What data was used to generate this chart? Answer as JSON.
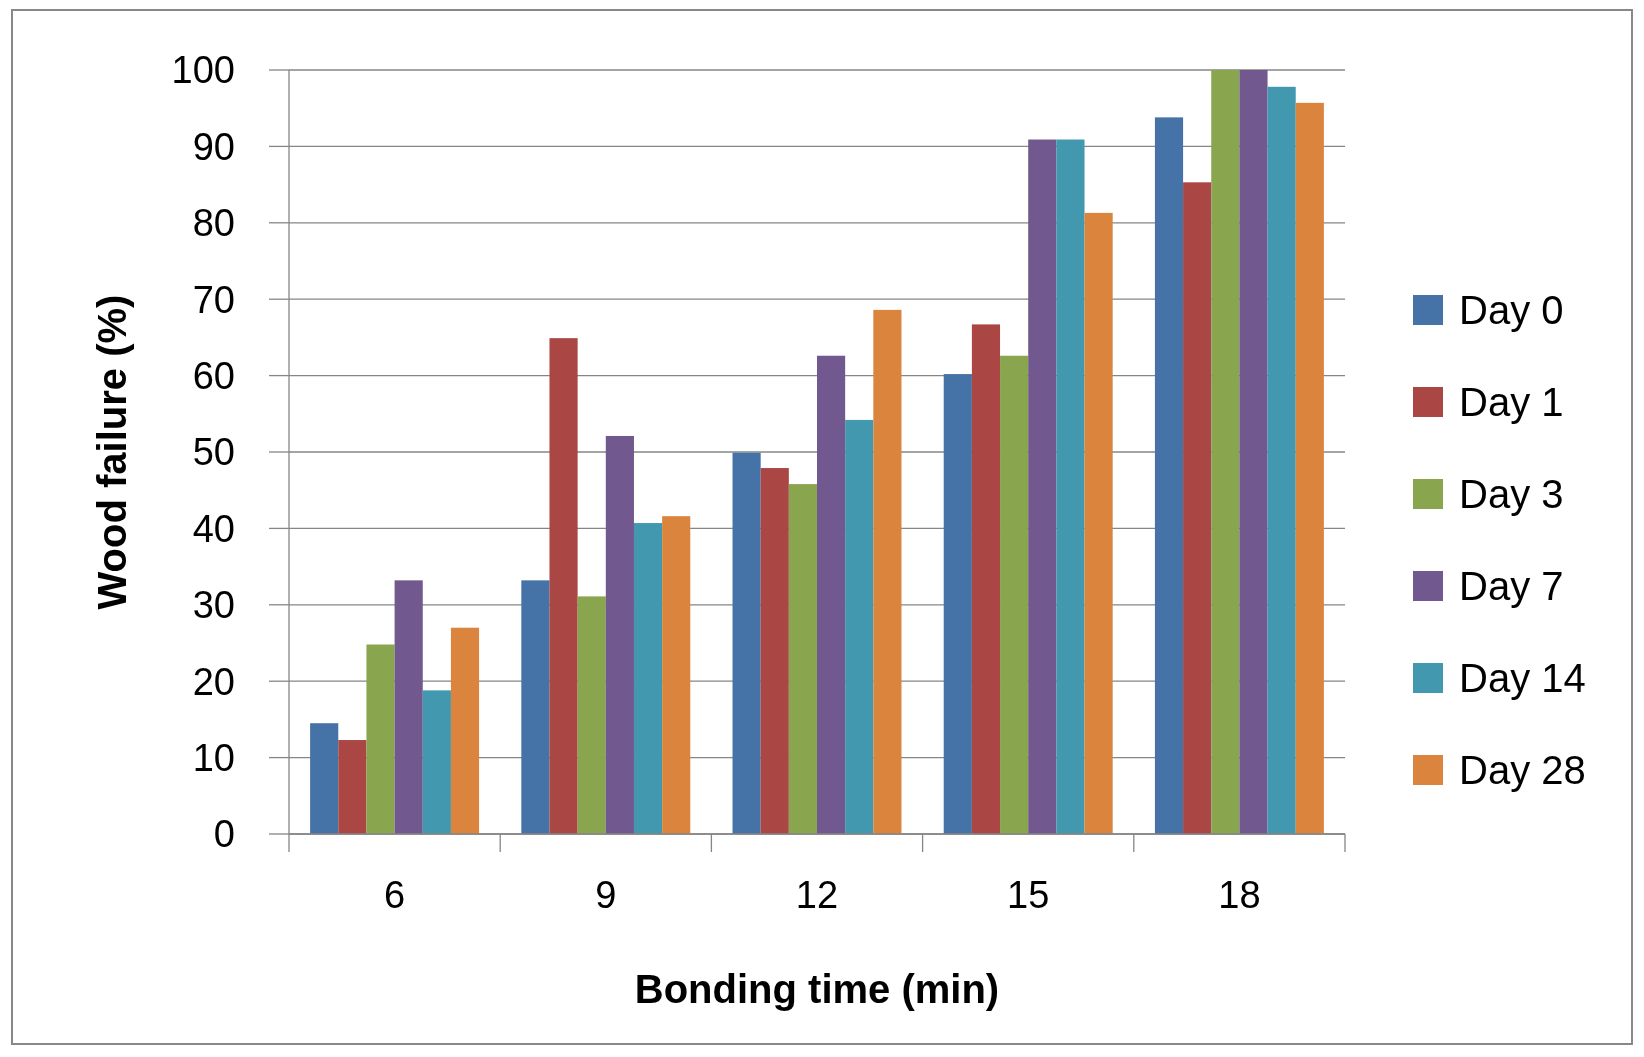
{
  "chart_data": {
    "type": "bar",
    "xlabel": "Bonding time (min)",
    "ylabel": "Wood failure (%)",
    "categories": [
      "6",
      "9",
      "12",
      "15",
      "18"
    ],
    "series": [
      {
        "name": "Day 0",
        "color": "#4572a7",
        "values": [
          14.5,
          33.2,
          49.9,
          60.2,
          93.8
        ]
      },
      {
        "name": "Day 1",
        "color": "#aa4643",
        "values": [
          12.3,
          64.9,
          47.9,
          66.7,
          85.3
        ]
      },
      {
        "name": "Day 3",
        "color": "#89a54e",
        "values": [
          24.8,
          31.1,
          45.8,
          62.6,
          100
        ]
      },
      {
        "name": "Day 7",
        "color": "#71588f",
        "values": [
          33.2,
          52.1,
          62.6,
          90.9,
          100
        ]
      },
      {
        "name": "Day 14",
        "color": "#4198af",
        "values": [
          18.8,
          40.7,
          54.2,
          90.9,
          97.8
        ]
      },
      {
        "name": "Day 28",
        "color": "#db843d",
        "values": [
          27,
          41.6,
          68.6,
          81.3,
          95.7
        ]
      }
    ],
    "ylim": [
      0,
      100
    ],
    "yticks": [
      0,
      10,
      20,
      30,
      40,
      50,
      60,
      70,
      80,
      90,
      100
    ],
    "grid": "y",
    "legend": "right"
  }
}
